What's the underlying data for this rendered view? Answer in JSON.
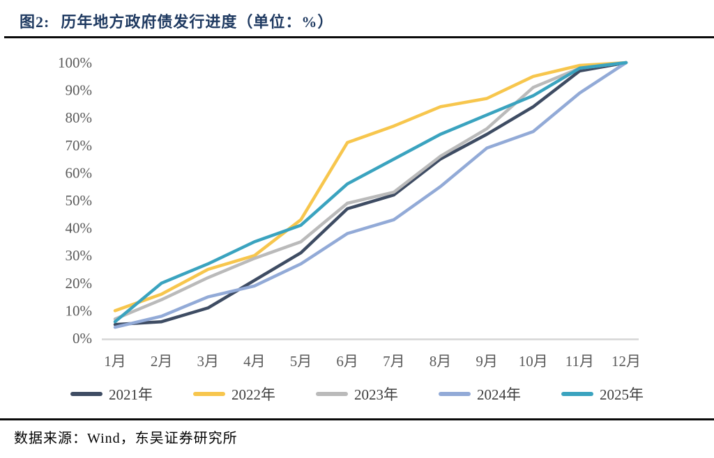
{
  "header": {
    "figure_label": "图2:",
    "title": "历年地方政府债发行进度（单位：%）"
  },
  "footer": {
    "source": "数据来源：Wind，东吴证券研究所"
  },
  "colors": {
    "title_text": "#1F3A61",
    "rule": "#0A0A0A",
    "axis_line": "#D6D6D6",
    "tick_label": "#595959",
    "legend_text": "#3D3D3D"
  },
  "chart_data": {
    "type": "line",
    "title": "历年地方政府债发行进度（单位：%）",
    "categories": [
      "1月",
      "2月",
      "3月",
      "4月",
      "5月",
      "6月",
      "7月",
      "8月",
      "9月",
      "10月",
      "11月",
      "12月"
    ],
    "y_ticks": [
      "0%",
      "10%",
      "20%",
      "30%",
      "40%",
      "50%",
      "60%",
      "70%",
      "80%",
      "90%",
      "100%"
    ],
    "ylim": [
      0,
      100
    ],
    "grid": false,
    "legend_position": "bottom",
    "series": [
      {
        "name": "2021年",
        "color": "#3E4C63",
        "values": [
          5,
          6,
          11,
          21,
          31,
          47,
          52,
          65,
          74,
          84,
          97,
          100
        ]
      },
      {
        "name": "2022年",
        "color": "#F7C64D",
        "values": [
          10,
          16,
          25,
          30,
          43,
          71,
          77,
          84,
          87,
          95,
          99,
          100
        ]
      },
      {
        "name": "2023年",
        "color": "#BABABA",
        "values": [
          7,
          14,
          22,
          29,
          35,
          49,
          53,
          66,
          76,
          91,
          98,
          100
        ]
      },
      {
        "name": "2024年",
        "color": "#92AAD7",
        "values": [
          4,
          8,
          15,
          19,
          27,
          38,
          43,
          55,
          69,
          75,
          89,
          100
        ]
      },
      {
        "name": "2025年",
        "color": "#3AA3BF",
        "values": [
          6,
          20,
          27,
          35,
          41,
          56,
          65,
          74,
          81,
          88,
          98,
          100
        ]
      }
    ]
  }
}
